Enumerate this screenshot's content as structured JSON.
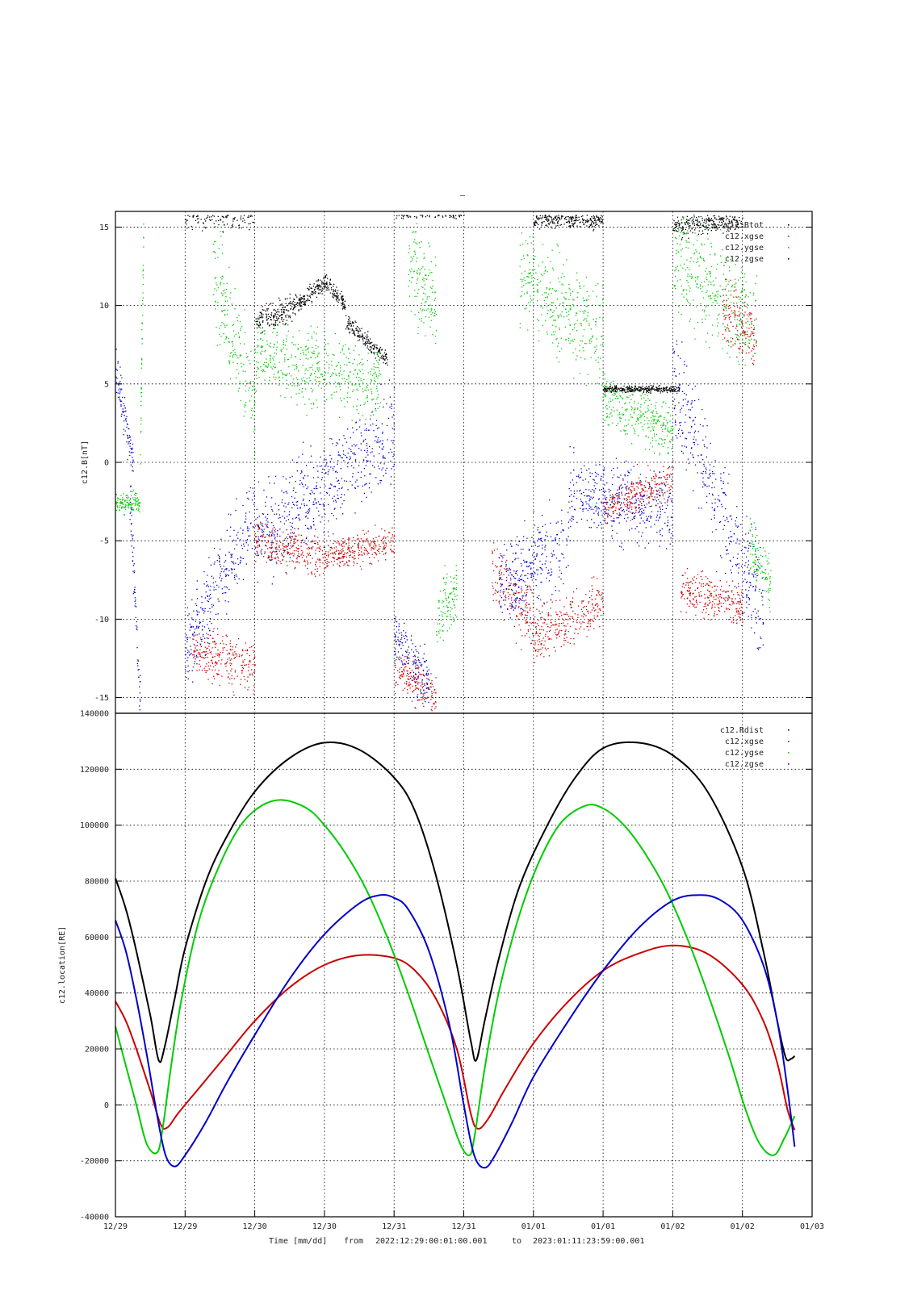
{
  "title_mark": "–",
  "footer": {
    "time_label": "Time [mm/dd]",
    "from_label": "from",
    "from_value": "2022:12:29:00:01:00.001",
    "to_label": "to",
    "to_value": "2023:01:11:23:59:00.001"
  },
  "x_tick_labels": [
    "12/29",
    "12/29",
    "12/30",
    "12/30",
    "12/31",
    "12/31",
    "01/01",
    "01/01",
    "01/02",
    "01/02",
    "01/03"
  ],
  "colors": {
    "black": "#000000",
    "red": "#cc0000",
    "green": "#00cc00",
    "blue": "#0000cc"
  },
  "chart_data": [
    {
      "type": "scatter",
      "ylabel": "c12.B[nT]",
      "ylim": [
        -16,
        16
      ],
      "yticks": [
        -15,
        -10,
        -5,
        0,
        5,
        10,
        15
      ],
      "xlim": [
        0,
        10
      ],
      "grid": true,
      "legend_placement": "top-right",
      "series": [
        {
          "name": "c12.Btot",
          "color": "#000000",
          "segments": [
            {
              "x": [
                1.0,
                2.0
              ],
              "y": [
                16,
                16
              ],
              "spread": 1.5
            },
            {
              "x": [
                2.0,
                2.6
              ],
              "y": [
                9,
                10
              ],
              "spread": 1.2
            },
            {
              "x": [
                2.6,
                3.0
              ],
              "y": [
                10,
                11.5
              ],
              "spread": 0.8
            },
            {
              "x": [
                3.0,
                3.3
              ],
              "y": [
                11.5,
                10
              ],
              "spread": 0.8
            },
            {
              "x": [
                3.3,
                3.9
              ],
              "y": [
                9,
                6.5
              ],
              "spread": 0.8
            },
            {
              "x": [
                4.0,
                5.0
              ],
              "y": [
                16,
                16
              ],
              "spread": 0.6
            },
            {
              "x": [
                6.0,
                7.0
              ],
              "y": [
                15.5,
                15.5
              ],
              "spread": 0.8
            },
            {
              "x": [
                7.0,
                8.1
              ],
              "y": [
                4.7,
                4.7
              ],
              "spread": 0.3
            },
            {
              "x": [
                8.0,
                9.0
              ],
              "y": [
                15,
                15.5
              ],
              "spread": 1.0
            }
          ]
        },
        {
          "name": "c12.xgse",
          "color": "#cc0000",
          "segments": [
            {
              "x": [
                1.1,
                2.0
              ],
              "y": [
                -12,
                -13
              ],
              "spread": 2.5
            },
            {
              "x": [
                2.0,
                3.0
              ],
              "y": [
                -5,
                -6
              ],
              "spread": 2.0
            },
            {
              "x": [
                3.0,
                4.0
              ],
              "y": [
                -6,
                -5
              ],
              "spread": 1.5
            },
            {
              "x": [
                4.0,
                4.6
              ],
              "y": [
                -13,
                -15
              ],
              "spread": 2.0
            },
            {
              "x": [
                5.4,
                6.0
              ],
              "y": [
                -7,
                -10
              ],
              "spread": 3.0
            },
            {
              "x": [
                6.0,
                7.0
              ],
              "y": [
                -11,
                -9
              ],
              "spread": 2.5
            },
            {
              "x": [
                7.0,
                8.0
              ],
              "y": [
                -3,
                -1
              ],
              "spread": 2.0
            },
            {
              "x": [
                8.1,
                9.0
              ],
              "y": [
                -8,
                -9
              ],
              "spread": 2.0
            },
            {
              "x": [
                8.7,
                9.2
              ],
              "y": [
                10,
                8
              ],
              "spread": 3.0
            }
          ]
        },
        {
          "name": "c12.ygse",
          "color": "#00cc00",
          "segments": [
            {
              "x": [
                0.0,
                0.35
              ],
              "y": [
                -2.5,
                -2.5
              ],
              "spread": 1.0
            },
            {
              "x": [
                0.35,
                0.4
              ],
              "y": [
                0,
                15
              ],
              "spread": 3.0
            },
            {
              "x": [
                1.4,
                2.0
              ],
              "y": [
                12,
                3
              ],
              "spread": 5.0
            },
            {
              "x": [
                2.0,
                3.8
              ],
              "y": [
                7,
                5
              ],
              "spread": 3.5
            },
            {
              "x": [
                4.2,
                4.6
              ],
              "y": [
                13,
                10
              ],
              "spread": 4.0
            },
            {
              "x": [
                4.6,
                4.9
              ],
              "y": [
                -10,
                -8
              ],
              "spread": 3.0
            },
            {
              "x": [
                5.8,
                7.0
              ],
              "y": [
                12,
                8
              ],
              "spread": 5.0
            },
            {
              "x": [
                7.0,
                8.0
              ],
              "y": [
                4,
                2
              ],
              "spread": 2.5
            },
            {
              "x": [
                8.0,
                9.2
              ],
              "y": [
                13,
                9
              ],
              "spread": 5.0
            },
            {
              "x": [
                9.1,
                9.4
              ],
              "y": [
                -5,
                -8
              ],
              "spread": 3.0
            }
          ]
        },
        {
          "name": "c12.zgse",
          "color": "#0000cc",
          "segments": [
            {
              "x": [
                0.0,
                0.25
              ],
              "y": [
                6,
                0
              ],
              "spread": 2.0
            },
            {
              "x": [
                0.2,
                0.35
              ],
              "y": [
                -2,
                -15
              ],
              "spread": 2.5
            },
            {
              "x": [
                1.0,
                2.0
              ],
              "y": [
                -12,
                -3
              ],
              "spread": 4.0
            },
            {
              "x": [
                2.0,
                4.0
              ],
              "y": [
                -5,
                2
              ],
              "spread": 4.5
            },
            {
              "x": [
                4.0,
                4.5
              ],
              "y": [
                -11,
                -14
              ],
              "spread": 2.5
            },
            {
              "x": [
                5.5,
                6.5
              ],
              "y": [
                -8,
                -5
              ],
              "spread": 4.0
            },
            {
              "x": [
                6.5,
                8.0
              ],
              "y": [
                -2,
                -3
              ],
              "spread": 3.5
            },
            {
              "x": [
                8.0,
                9.3
              ],
              "y": [
                5,
                -10
              ],
              "spread": 5.0
            }
          ]
        }
      ]
    },
    {
      "type": "line",
      "xlabel": "Time [mm/dd]",
      "ylabel": "c12.location[RE]",
      "ylim": [
        -40000,
        140000
      ],
      "yticks": [
        -40000,
        -20000,
        0,
        20000,
        40000,
        60000,
        80000,
        100000,
        120000,
        140000
      ],
      "xlim": [
        0,
        10
      ],
      "grid": true,
      "legend_placement": "top-right",
      "series": [
        {
          "name": "c12.Rdist",
          "color": "#000000",
          "x": [
            0,
            0.15,
            0.3,
            0.5,
            0.62,
            0.7,
            0.85,
            1.0,
            1.3,
            1.6,
            2.0,
            2.5,
            3.0,
            3.5,
            4.0,
            4.3,
            4.6,
            4.9,
            5.1,
            5.18,
            5.3,
            5.5,
            5.8,
            6.2,
            6.6,
            7.0,
            7.5,
            8.0,
            8.5,
            9.0,
            9.3,
            9.5,
            9.62,
            9.7,
            9.75
          ],
          "y": [
            81000,
            70000,
            55000,
            32000,
            16000,
            20000,
            38000,
            56000,
            80000,
            96000,
            112000,
            124000,
            129500,
            127000,
            117000,
            105000,
            82000,
            50000,
            23000,
            16000,
            30000,
            52000,
            78000,
            100000,
            117000,
            127500,
            129500,
            125000,
            112000,
            85000,
            55000,
            30000,
            17000,
            16500,
            17500
          ]
        },
        {
          "name": "c12.xgse",
          "color": "#cc0000",
          "x": [
            0,
            0.15,
            0.3,
            0.5,
            0.65,
            0.75,
            0.9,
            1.2,
            1.6,
            2.0,
            2.5,
            3.0,
            3.5,
            4.0,
            4.3,
            4.6,
            4.9,
            5.1,
            5.2,
            5.35,
            5.6,
            6.0,
            6.5,
            7.0,
            7.5,
            8.0,
            8.5,
            9.0,
            9.3,
            9.5,
            9.65,
            9.75
          ],
          "y": [
            37000,
            30000,
            20000,
            5000,
            -7000,
            -8000,
            -3000,
            6000,
            18000,
            30000,
            42000,
            50000,
            53500,
            52500,
            48000,
            38000,
            20000,
            -3000,
            -8500,
            -5000,
            6000,
            22000,
            37000,
            48000,
            54000,
            57000,
            54000,
            43000,
            30000,
            15000,
            -2000,
            -9000
          ]
        },
        {
          "name": "c12.ygse",
          "color": "#00cc00",
          "x": [
            0,
            0.15,
            0.3,
            0.45,
            0.6,
            0.68,
            0.8,
            0.95,
            1.2,
            1.5,
            1.8,
            2.1,
            2.4,
            2.75,
            3.0,
            3.3,
            3.6,
            3.9,
            4.2,
            4.5,
            4.75,
            4.95,
            5.08,
            5.15,
            5.3,
            5.5,
            5.8,
            6.1,
            6.4,
            6.75,
            7.0,
            7.3,
            7.6,
            7.9,
            8.2,
            8.5,
            8.8,
            9.05,
            9.25,
            9.45,
            9.6,
            9.75
          ],
          "y": [
            28000,
            14000,
            0,
            -14000,
            -17000,
            -8000,
            14000,
            38000,
            66000,
            86000,
            100000,
            107000,
            109000,
            106000,
            100000,
            90000,
            77000,
            60000,
            40000,
            18000,
            0,
            -14000,
            -18000,
            -12000,
            13000,
            40000,
            68000,
            88000,
            101000,
            107000,
            106000,
            100000,
            90000,
            77000,
            60000,
            40000,
            18000,
            -2000,
            -14000,
            -18000,
            -12000,
            -4000
          ]
        },
        {
          "name": "c12.zgse",
          "color": "#0000cc",
          "x": [
            0,
            0.15,
            0.3,
            0.45,
            0.6,
            0.72,
            0.85,
            1.0,
            1.3,
            1.6,
            2.0,
            2.5,
            3.0,
            3.5,
            3.8,
            4.0,
            4.2,
            4.5,
            4.8,
            5.0,
            5.15,
            5.3,
            5.45,
            5.7,
            6.0,
            6.5,
            7.0,
            7.5,
            8.0,
            8.4,
            8.7,
            9.0,
            9.3,
            9.5,
            9.65,
            9.75
          ],
          "y": [
            66000,
            55000,
            38000,
            18000,
            -4000,
            -18000,
            -22000,
            -18000,
            -6000,
            8000,
            25000,
            45000,
            61000,
            72000,
            75000,
            74000,
            70000,
            55000,
            28000,
            0,
            -18000,
            -22500,
            -18000,
            -6000,
            10000,
            30000,
            48000,
            63000,
            73000,
            75000,
            73000,
            66000,
            50000,
            30000,
            5000,
            -15000
          ]
        }
      ]
    }
  ]
}
